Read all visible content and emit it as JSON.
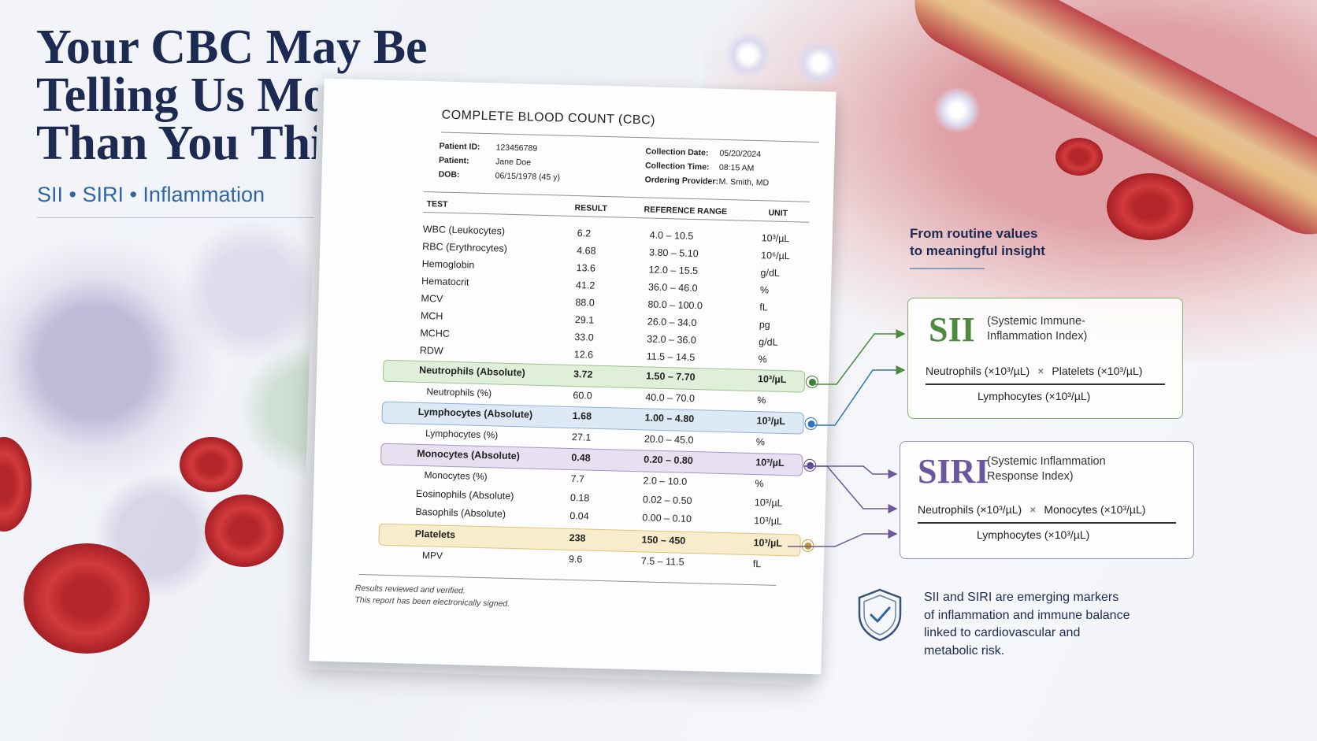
{
  "headline": {
    "lines": [
      "Your CBC May Be",
      "Telling Us More",
      "Than You Think"
    ],
    "subtitle": "SII • SIRI • Inflammation"
  },
  "report": {
    "title": "COMPLETE BLOOD COUNT (CBC)",
    "patient_id_label": "Patient ID:",
    "patient_id": "123456789",
    "patient_label": "Patient:",
    "patient": "Jane Doe",
    "dob_label": "DOB:",
    "dob": "06/15/1978 (45 y)",
    "collection_date_label": "Collection Date:",
    "collection_date": "05/20/2024",
    "collection_time_label": "Collection Time:",
    "collection_time": "08:15 AM",
    "provider_label": "Ordering Provider:",
    "provider": "M. Smith, MD",
    "columns": {
      "test": "TEST",
      "result": "RESULT",
      "reference": "REFERENCE RANGE",
      "unit": "UNIT"
    },
    "rows": [
      {
        "test": "WBC (Leukocytes)",
        "result": "6.2",
        "ref": "4.0 – 10.5",
        "unit": "10³/µL"
      },
      {
        "test": "RBC (Erythrocytes)",
        "result": "4.68",
        "ref": "3.80 – 5.10",
        "unit": "10⁶/µL"
      },
      {
        "test": "Hemoglobin",
        "result": "13.6",
        "ref": "12.0 – 15.5",
        "unit": "g/dL"
      },
      {
        "test": "Hematocrit",
        "result": "41.2",
        "ref": "36.0 – 46.0",
        "unit": "%"
      },
      {
        "test": "MCV",
        "result": "88.0",
        "ref": "80.0 – 100.0",
        "unit": "fL"
      },
      {
        "test": "MCH",
        "result": "29.1",
        "ref": "26.0 – 34.0",
        "unit": "pg"
      },
      {
        "test": "MCHC",
        "result": "33.0",
        "ref": "32.0 – 36.0",
        "unit": "g/dL"
      },
      {
        "test": "RDW",
        "result": "12.6",
        "ref": "11.5 – 14.5",
        "unit": "%"
      },
      {
        "test": "Neutrophils (Absolute)",
        "result": "3.72",
        "ref": "1.50 – 7.70",
        "unit": "10³/µL"
      },
      {
        "test": "Neutrophils (%)",
        "result": "60.0",
        "ref": "40.0 – 70.0",
        "unit": "%"
      },
      {
        "test": "Lymphocytes (Absolute)",
        "result": "1.68",
        "ref": "1.00 – 4.80",
        "unit": "10³/µL"
      },
      {
        "test": "Lymphocytes (%)",
        "result": "27.1",
        "ref": "20.0 – 45.0",
        "unit": "%"
      },
      {
        "test": "Monocytes (Absolute)",
        "result": "0.48",
        "ref": "0.20 – 0.80",
        "unit": "10³/µL"
      },
      {
        "test": "Monocytes (%)",
        "result": "7.7",
        "ref": "2.0 – 10.0",
        "unit": "%"
      },
      {
        "test": "Eosinophils (Absolute)",
        "result": "0.18",
        "ref": "0.02 – 0.50",
        "unit": "10³/µL"
      },
      {
        "test": "Basophils (Absolute)",
        "result": "0.04",
        "ref": "0.00 – 0.10",
        "unit": "10³/µL"
      },
      {
        "test": "Platelets",
        "result": "238",
        "ref": "150 – 450",
        "unit": "10³/µL"
      },
      {
        "test": "MPV",
        "result": "9.6",
        "ref": "7.5 – 11.5",
        "unit": "fL"
      }
    ],
    "footer_line1": "Results reviewed and verified.",
    "footer_line2": "This report has been electronically signed."
  },
  "insight": {
    "line1": "From routine values",
    "line2": "to meaningful insight"
  },
  "sii": {
    "abbr": "SII",
    "full_line1": "(Systemic Immune-",
    "full_line2": "Inflammation Index)",
    "num_a": "Neutrophils (×10³/µL)",
    "op": "×",
    "num_b": "Platelets (×10³/µL)",
    "den": "Lymphocytes (×10³/µL)"
  },
  "siri": {
    "abbr": "SIRI",
    "full_line1": "(Systemic Inflammation",
    "full_line2": "Response Index)",
    "num_a": "Neutrophils (×10³/µL)",
    "op": "×",
    "num_b": "Monocytes (×10³/µL)",
    "den": "Lymphocytes (×10³/µL)"
  },
  "note": {
    "line1": "SII and SIRI are emerging markers",
    "line2": "of inflammation and immune balance",
    "line3": "linked to cardiovascular and",
    "line4": "metabolic risk."
  },
  "colors": {
    "navy": "#1d2b52",
    "accent_blue": "#2f64a6",
    "sii_green": "#4e8a3f",
    "siri_purple": "#6b56a0",
    "neutrophil_green": "#3e7d3a",
    "lymphocyte_blue": "#2e73b8",
    "monocyte_purple": "#5a4690",
    "platelet_gold": "#c9962a"
  },
  "icons": {
    "shield": "shield-check-icon"
  }
}
